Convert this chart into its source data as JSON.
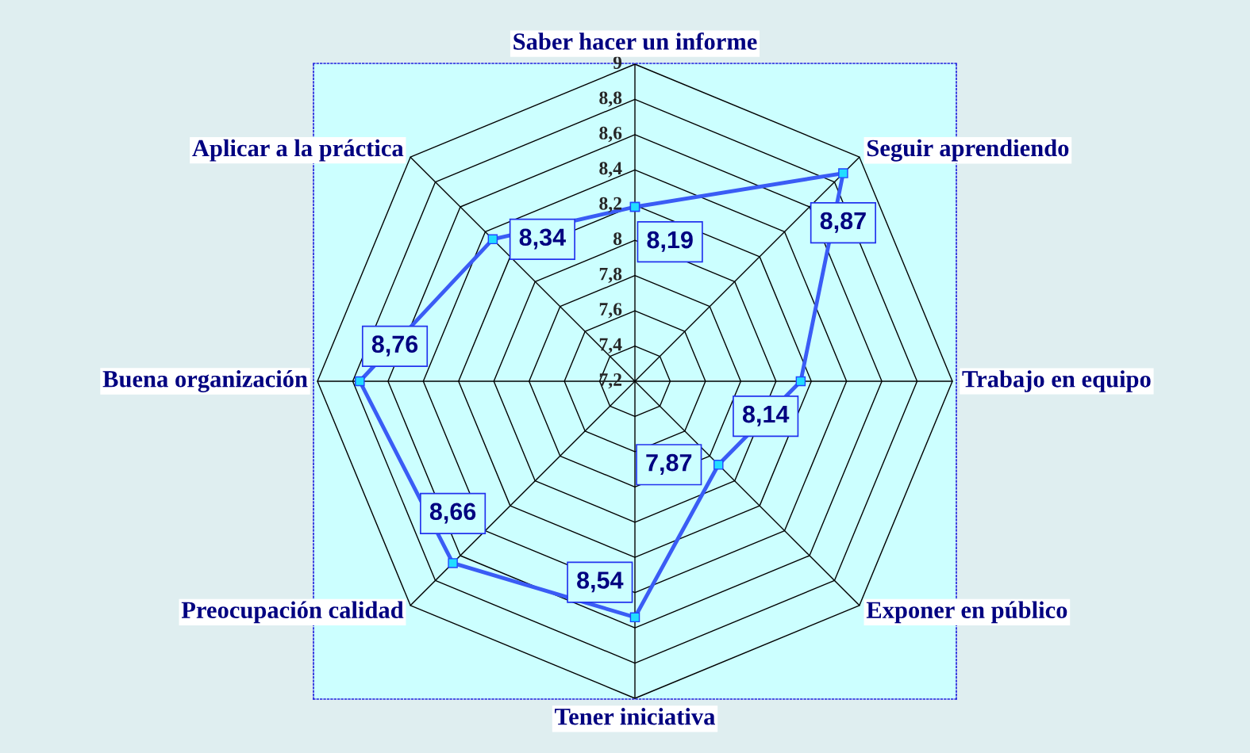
{
  "chart_data": {
    "type": "radar",
    "categories": [
      "Saber hacer un informe",
      "Seguir aprendiendo",
      "Trabajo en equipo",
      "Exponer en público",
      "Tener iniciativa",
      "Preocupación calidad",
      "Buena organización",
      "Aplicar a la práctica"
    ],
    "series": [
      {
        "color": "#3a5cf5",
        "values": [
          8.19,
          8.87,
          8.14,
          7.87,
          8.54,
          8.66,
          8.76,
          8.34
        ],
        "value_labels": [
          "8,19",
          "8,87",
          "8,14",
          "7,87",
          "8,54",
          "8,66",
          "8,76",
          "8,34"
        ]
      }
    ],
    "ylim": [
      7.2,
      9
    ],
    "yticks": [
      {
        "value": 7.2,
        "label": "7,2"
      },
      {
        "value": 7.4,
        "label": "7,4"
      },
      {
        "value": 7.6,
        "label": "7,6"
      },
      {
        "value": 7.8,
        "label": "7,8"
      },
      {
        "value": 8,
        "label": "8"
      },
      {
        "value": 8.2,
        "label": "8,2"
      },
      {
        "value": 8.4,
        "label": "8,4"
      },
      {
        "value": 8.6,
        "label": "8,6"
      },
      {
        "value": 8.8,
        "label": "8,8"
      },
      {
        "value": 9,
        "label": "9"
      }
    ],
    "grid": true,
    "marker": "square",
    "line_style": "solid"
  }
}
